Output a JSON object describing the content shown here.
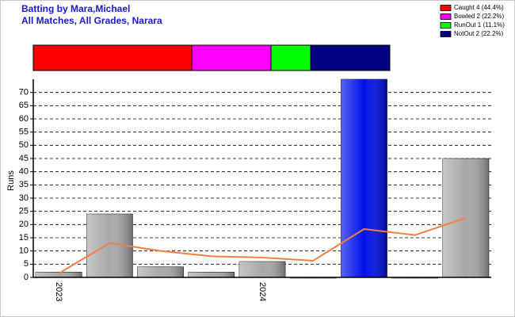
{
  "chart_data": [
    {
      "type": "stacked-bar",
      "title": "Batting by Mara,Michael",
      "subtitle": "All Matches, All Grades, Narara",
      "categories": [
        "Caught 4 (44.4%)",
        "Bowled 2 (22.2%)",
        "RunOut 1 (11.1%)",
        "NotOut 2 (22.2%)"
      ],
      "values": [
        4,
        2,
        1,
        2
      ],
      "colors": [
        "#ff0000",
        "#ff00ff",
        "#00ff00",
        "#000080"
      ]
    },
    {
      "type": "bar",
      "y_label": "Runs",
      "categories": [
        "2023",
        null,
        null,
        null,
        "2024",
        null,
        null,
        null,
        null
      ],
      "values": [
        2,
        24,
        4,
        2,
        6,
        0,
        75,
        0,
        45
      ],
      "colors": [
        "#a8a8a8",
        "#a8a8a8",
        "#a8a8a8",
        "#a8a8a8",
        "#a8a8a8",
        "#a8a8a8",
        "#0010e8",
        "#a8a8a8",
        "#a8a8a8"
      ],
      "line": {
        "color": "#f08040",
        "values": [
          1.5,
          13,
          10,
          8,
          7.5,
          6.3,
          18.3,
          16,
          22.5
        ]
      },
      "ylim": [
        0,
        75
      ],
      "yticks": [
        0,
        5,
        10,
        15,
        20,
        25,
        30,
        35,
        40,
        45,
        50,
        55,
        60,
        65,
        70
      ],
      "grid": true
    }
  ]
}
